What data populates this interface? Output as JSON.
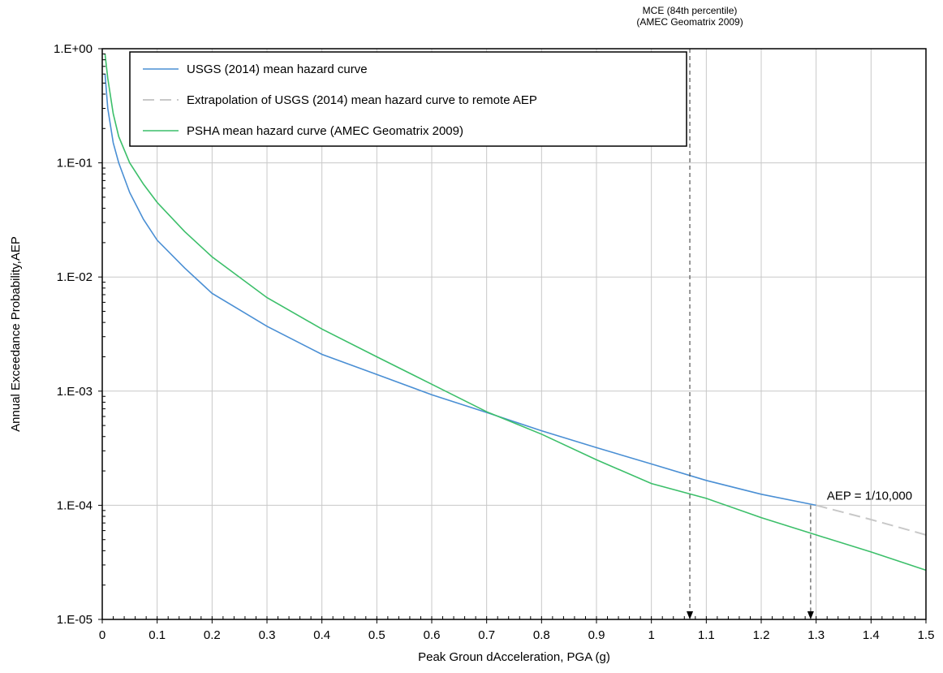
{
  "chart_data": {
    "type": "line",
    "xlabel": "Peak Groun dAcceleration, PGA (g)",
    "ylabel": "Annual Exceedance Probability,AEP",
    "xlim": [
      0,
      1.5
    ],
    "ylim": [
      1e-05,
      1
    ],
    "y_scale": "log",
    "grid": true,
    "legend_position": "top-left",
    "x_ticks": [
      "0",
      "0.1",
      "0.2",
      "0.3",
      "0.4",
      "0.5",
      "0.6",
      "0.7",
      "0.8",
      "0.9",
      "1",
      "1.1",
      "1.2",
      "1.3",
      "1.4",
      "1.5"
    ],
    "x_tick_values": [
      0,
      0.1,
      0.2,
      0.3,
      0.4,
      0.5,
      0.6,
      0.7,
      0.8,
      0.9,
      1.0,
      1.1,
      1.2,
      1.3,
      1.4,
      1.5
    ],
    "y_ticks": [
      "1.E+00",
      "1.E-01",
      "1.E-02",
      "1.E-03",
      "1.E-04",
      "1.E-05"
    ],
    "y_tick_values": [
      1,
      0.1,
      0.01,
      0.001,
      0.0001,
      1e-05
    ],
    "series": [
      {
        "name": "USGS (2014) mean hazard curve",
        "color": "#4a8fd4",
        "style": "solid",
        "x": [
          0.005,
          0.01,
          0.02,
          0.03,
          0.05,
          0.075,
          0.1,
          0.15,
          0.2,
          0.3,
          0.4,
          0.5,
          0.6,
          0.7,
          0.8,
          0.9,
          1.0,
          1.1,
          1.2,
          1.3
        ],
        "y": [
          0.6,
          0.3,
          0.15,
          0.1,
          0.055,
          0.032,
          0.021,
          0.012,
          0.0072,
          0.0037,
          0.0021,
          0.0014,
          0.00093,
          0.00065,
          0.00045,
          0.00032,
          0.00023,
          0.000165,
          0.000125,
          0.0001
        ]
      },
      {
        "name": "Extrapolation of USGS (2014) mean hazard curve to remote AEP",
        "color": "#c8c8c8",
        "style": "dashed",
        "x": [
          1.3,
          1.4,
          1.5
        ],
        "y": [
          0.0001,
          7.5e-05,
          5.5e-05
        ]
      },
      {
        "name": "PSHA mean hazard curve (AMEC Geomatrix 2009)",
        "color": "#3cbf6a",
        "style": "solid",
        "x": [
          0.005,
          0.01,
          0.02,
          0.03,
          0.05,
          0.075,
          0.1,
          0.15,
          0.2,
          0.3,
          0.4,
          0.5,
          0.6,
          0.7,
          0.8,
          0.9,
          1.0,
          1.1,
          1.2,
          1.3,
          1.4,
          1.5
        ],
        "y": [
          0.9,
          0.55,
          0.27,
          0.17,
          0.1,
          0.065,
          0.045,
          0.025,
          0.015,
          0.0066,
          0.0035,
          0.002,
          0.00115,
          0.00066,
          0.00042,
          0.00025,
          0.000155,
          0.000115,
          7.8e-05,
          5.5e-05,
          3.9e-05,
          2.7e-05
        ]
      }
    ],
    "annotations": [
      {
        "id": "mce",
        "lines": [
          "MCE (84th percentile)",
          "(AMEC Geomatrix 2009)"
        ],
        "x": 1.07
      },
      {
        "id": "aep",
        "text": "AEP = 1/10,000",
        "x": 1.29,
        "y": 0.0001
      }
    ]
  }
}
